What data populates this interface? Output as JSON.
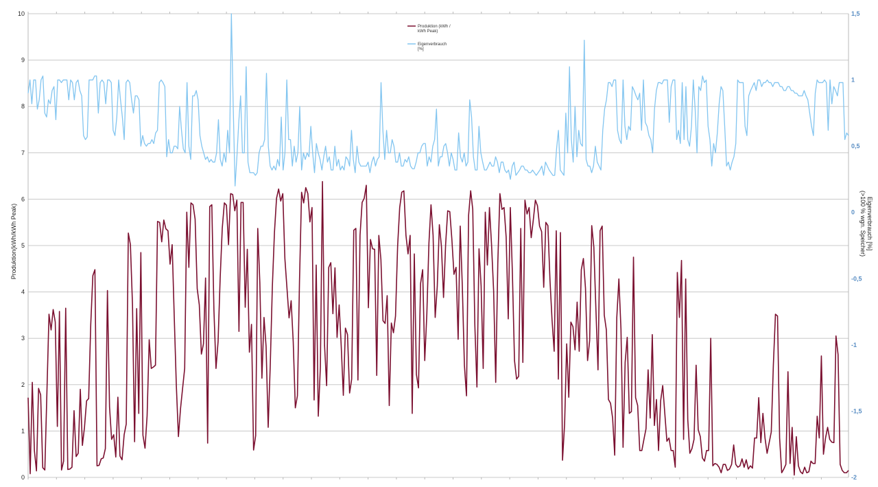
{
  "chart_data": {
    "type": "line",
    "xlabel": "",
    "ylabel": "Produktion(kWh/kWh Peak)",
    "ylabel_right": [
      "Eigenverbrauch [%]",
      "(>100 % wgn. Speicher)"
    ],
    "ylim": [
      0,
      10
    ],
    "ylim_right": [
      -2,
      1.5
    ],
    "left_ticks": [
      "0",
      "1",
      "2",
      "3",
      "4",
      "5",
      "6",
      "7",
      "8",
      "9",
      "10"
    ],
    "right_ticks": [
      "-2",
      "-1,5",
      "-1",
      "-0,5",
      "0",
      "0,5",
      "1",
      "1,5"
    ],
    "grid": true,
    "legend_position": "top-center",
    "series": [
      {
        "name": "Produktion (kWh / kWh Peak)",
        "legend_lines": [
          "Produktion (kWh /",
          "kWh Peak)"
        ],
        "axis": "left",
        "color": "#7b1030",
        "values": [
          1.72,
          0.08,
          2.05,
          0.58,
          0.14,
          1.92,
          1.78,
          0.21,
          0.16,
          1.83,
          3.52,
          3.18,
          3.62,
          3.35,
          1.1,
          3.58,
          0.16,
          0.35,
          3.65,
          0.17,
          0.18,
          0.22,
          1.44,
          0.45,
          0.52,
          1.9,
          0.69,
          1.08,
          1.65,
          1.7,
          3.3,
          4.35,
          4.48,
          0.25,
          0.26,
          0.4,
          0.42,
          0.62,
          4.03,
          1.52,
          0.82,
          0.92,
          0.44,
          1.73,
          0.46,
          0.38,
          0.92,
          1.15,
          5.27,
          5.02,
          3.72,
          0.77,
          3.64,
          1.38,
          4.85,
          0.91,
          0.63,
          1.33,
          2.97,
          2.35,
          2.38,
          2.42,
          5.52,
          5.5,
          5.08,
          5.55,
          5.36,
          5.32,
          4.6,
          5.02,
          3.46,
          1.98,
          0.88,
          1.48,
          1.92,
          2.35,
          5.72,
          4.53,
          5.92,
          5.88,
          5.57,
          4.07,
          3.72,
          2.66,
          2.88,
          4.3,
          0.74,
          5.84,
          5.88,
          3.62,
          2.35,
          2.93,
          4.3,
          5.37,
          5.92,
          5.87,
          5.02,
          6.12,
          6.1,
          5.75,
          5.98,
          3.15,
          5.93,
          5.93,
          3.67,
          4.92,
          2.7,
          3.3,
          0.59,
          0.9,
          5.37,
          4.2,
          2.14,
          3.45,
          2.82,
          1.08,
          2.43,
          4.12,
          5.28,
          6.02,
          6.22,
          5.96,
          6.12,
          4.72,
          4.08,
          3.44,
          3.81,
          2.92,
          1.5,
          1.76,
          4.23,
          6.15,
          5.92,
          6.25,
          6.12,
          5.51,
          5.82,
          1.67,
          4.58,
          1.32,
          2.38,
          6.38,
          2.85,
          1.98,
          4.53,
          4.63,
          3.53,
          4.52,
          3.02,
          3.72,
          2.82,
          1.77,
          3.22,
          3.08,
          1.82,
          2.12,
          5.33,
          5.37,
          2.1,
          5.22,
          5.93,
          6.02,
          6.3,
          3.66,
          5.13,
          4.93,
          4.92,
          2.2,
          5.22,
          4.7,
          3.38,
          3.32,
          3.92,
          1.55,
          3.33,
          3.12,
          3.48,
          4.98,
          5.82,
          6.15,
          6.18,
          5.22,
          4.82,
          5.22,
          1.38,
          4.82,
          2.22,
          1.93,
          4.18,
          4.48,
          2.52,
          3.52,
          5.05,
          5.88,
          5.22,
          3.45,
          4.12,
          5.45,
          4.98,
          3.88,
          5.02,
          5.75,
          5.73,
          5.13,
          4.38,
          4.53,
          2.98,
          5.42,
          4.12,
          2.42,
          1.76,
          5.65,
          6.18,
          5.78,
          3.28,
          1.95,
          4.93,
          4.13,
          2.35,
          5.72,
          4.58,
          5.82,
          5.02,
          4.02,
          2.05,
          4.62,
          6.12,
          5.78,
          5.82,
          5.18,
          3.42,
          5.82,
          4.38,
          2.52,
          2.12,
          2.18,
          5.37,
          2.48,
          5.98,
          5.68,
          5.82,
          5.17,
          5.55,
          5.98,
          5.86,
          5.42,
          5.3,
          4.1,
          5.5,
          5.43,
          4.25,
          3.38,
          2.72,
          5.32,
          2.12,
          5.28,
          0.37,
          1.15,
          2.88,
          1.73,
          3.35,
          3.25,
          2.75,
          3.78,
          2.72,
          4.48,
          4.72,
          4.08,
          2.52,
          2.95,
          5.43,
          4.97,
          3.62,
          2.32,
          5.32,
          5.42,
          3.5,
          3.18,
          1.68,
          1.6,
          1.28,
          0.48,
          3.45,
          4.28,
          3.2,
          0.65,
          2.48,
          3.02,
          1.38,
          1.42,
          4.75,
          1.72,
          1.55,
          0.58,
          0.58,
          0.82,
          1.05,
          2.32,
          1.28,
          3.08,
          1.12,
          1.68,
          0.58,
          1.65,
          1.98,
          1.38,
          0.78,
          0.85,
          0.58,
          0.58,
          0.22,
          4.42,
          3.45,
          4.68,
          0.82,
          4.28,
          1.25,
          0.52,
          0.62,
          0.82,
          2.42,
          1.03,
          0.88,
          0.42,
          0.35,
          0.58,
          0.58,
          3.0,
          0.25,
          0.3,
          0.28,
          0.22,
          0.1,
          0.28,
          0.28,
          0.15,
          0.18,
          0.28,
          0.7,
          0.28,
          0.22,
          0.25,
          0.4,
          0.22,
          0.38,
          0.18,
          0.25,
          0.2,
          0.85,
          0.85,
          1.72,
          0.75,
          1.38,
          0.85,
          0.52,
          0.75,
          0.98,
          2.42,
          3.52,
          3.48,
          0.85,
          0.1,
          0.18,
          0.28,
          2.28,
          0.3,
          1.08,
          0.05,
          0.88,
          0.25,
          0.12,
          0.08,
          0.22,
          0.1,
          0.12,
          0.35,
          0.3,
          0.3,
          1.32,
          0.85,
          2.62,
          0.5,
          0.85,
          1.08,
          0.82,
          0.76,
          0.75,
          3.05,
          2.65,
          0.28,
          0.15,
          0.1,
          0.1,
          0.15
        ]
      },
      {
        "name": "Eigenverbrauch [%]",
        "legend_lines": [
          "Eigenverbrauch",
          "[%]"
        ],
        "axis": "right",
        "color": "#82c5f0",
        "values": [
          0.9,
          1.0,
          0.82,
          1.0,
          1.0,
          0.78,
          0.85,
          1.0,
          1.03,
          0.75,
          0.72,
          0.85,
          0.82,
          0.92,
          0.95,
          0.7,
          1.0,
          1.0,
          0.98,
          1.0,
          1.0,
          1.0,
          0.85,
          1.0,
          0.98,
          0.85,
          0.98,
          1.0,
          0.92,
          0.88,
          0.58,
          0.55,
          0.57,
          1.0,
          1.0,
          1.0,
          1.03,
          1.03,
          0.75,
          0.98,
          1.0,
          0.98,
          0.82,
          1.0,
          1.0,
          0.98,
          0.62,
          0.58,
          0.72,
          1.0,
          0.85,
          0.72,
          0.55,
          0.98,
          1.0,
          0.98,
          0.85,
          0.75,
          0.88,
          0.88,
          0.85,
          0.5,
          0.58,
          0.52,
          0.5,
          0.52,
          0.52,
          0.55,
          0.52,
          0.6,
          0.62,
          0.98,
          1.0,
          0.98,
          0.95,
          0.42,
          0.55,
          0.45,
          0.45,
          0.5,
          0.5,
          0.48,
          0.8,
          0.62,
          0.48,
          0.45,
          0.98,
          0.5,
          0.4,
          0.88,
          0.88,
          0.92,
          0.85,
          0.58,
          0.5,
          0.45,
          0.4,
          0.42,
          0.38,
          0.4,
          0.38,
          0.38,
          0.45,
          0.7,
          0.4,
          0.35,
          0.45,
          0.38,
          0.62,
          0.45,
          1.5,
          0.8,
          0.2,
          0.42,
          0.68,
          0.88,
          0.45,
          0.45,
          1.1,
          0.38,
          0.3,
          0.3,
          0.3,
          0.28,
          0.3,
          0.45,
          0.5,
          0.5,
          0.55,
          1.05,
          0.5,
          0.35,
          0.32,
          0.35,
          0.32,
          0.4,
          0.35,
          0.72,
          0.32,
          0.45,
          1.0,
          0.55,
          0.55,
          0.35,
          0.5,
          0.38,
          0.45,
          0.8,
          0.32,
          0.45,
          0.4,
          0.45,
          0.42,
          0.65,
          0.45,
          0.3,
          0.52,
          0.45,
          0.4,
          0.32,
          0.42,
          0.5,
          0.38,
          0.42,
          0.32,
          0.32,
          0.5,
          0.35,
          0.4,
          0.32,
          0.35,
          0.32,
          0.42,
          0.4,
          0.35,
          0.62,
          0.4,
          0.3,
          0.5,
          0.38,
          0.35,
          0.35,
          0.35,
          0.35,
          0.38,
          0.3,
          0.38,
          0.42,
          0.35,
          0.4,
          0.42,
          0.98,
          0.62,
          0.4,
          0.62,
          0.45,
          0.45,
          0.55,
          0.5,
          0.38,
          0.38,
          0.45,
          0.35,
          0.35,
          0.4,
          0.38,
          0.42,
          0.35,
          0.33,
          0.33,
          0.38,
          0.45,
          0.45,
          0.5,
          0.52,
          0.52,
          0.35,
          0.42,
          0.38,
          0.5,
          0.55,
          0.78,
          0.35,
          0.42,
          0.42,
          0.5,
          0.52,
          0.45,
          0.35,
          0.45,
          0.4,
          0.32,
          0.32,
          0.6,
          0.42,
          0.38,
          0.45,
          0.35,
          0.38,
          0.85,
          0.72,
          0.42,
          0.32,
          0.32,
          0.65,
          0.45,
          0.38,
          0.32,
          0.32,
          0.35,
          0.38,
          0.35,
          0.35,
          0.42,
          0.38,
          0.3,
          0.38,
          0.38,
          0.32,
          0.3,
          0.32,
          0.25,
          0.35,
          0.38,
          0.28,
          0.3,
          0.32,
          0.35,
          0.35,
          0.32,
          0.32,
          0.3,
          0.3,
          0.32,
          0.3,
          0.28,
          0.3,
          0.32,
          0.35,
          0.28,
          0.38,
          0.35,
          0.32,
          0.3,
          0.28,
          0.28,
          0.48,
          0.62,
          0.32,
          0.3,
          0.28,
          0.75,
          0.45,
          1.1,
          0.55,
          0.38,
          0.8,
          0.42,
          0.62,
          0.52,
          0.5,
          1.3,
          0.4,
          0.35,
          0.35,
          0.3,
          0.35,
          0.5,
          0.38,
          0.35,
          0.32,
          0.62,
          0.78,
          0.85,
          0.98,
          0.98,
          0.95,
          1.0,
          1.0,
          0.62,
          0.55,
          0.52,
          1.0,
          0.65,
          0.55,
          0.65,
          0.62,
          0.95,
          0.92,
          0.88,
          0.85,
          0.9,
          0.62,
          1.0,
          0.68,
          0.65,
          0.58,
          0.55,
          0.45,
          0.78,
          0.92,
          0.98,
          0.98,
          0.97,
          1.0,
          1.0,
          1.0,
          0.68,
          0.95,
          1.0,
          1.0,
          0.55,
          0.62,
          0.52,
          0.98,
          0.55,
          0.95,
          0.55,
          0.5,
          0.65,
          1.0,
          0.78,
          0.45,
          0.95,
          0.92,
          1.03,
          0.98,
          1.0,
          0.65,
          0.55,
          0.35,
          0.52,
          0.45,
          0.6,
          0.82,
          0.95,
          0.92,
          0.65,
          0.35,
          0.38,
          0.32,
          0.38,
          0.42,
          0.52,
          1.0,
          0.98,
          0.98,
          0.98,
          0.65,
          0.58,
          0.88,
          0.92,
          0.95,
          0.98,
          0.92,
          1.0,
          1.0,
          0.95,
          0.98,
          0.98,
          1.0,
          0.98,
          0.98,
          0.95,
          0.98,
          0.98,
          0.98,
          0.95,
          0.95,
          0.92,
          0.92,
          0.95,
          0.95,
          0.92,
          0.92,
          0.9,
          0.9,
          0.88,
          0.88,
          0.88,
          0.92,
          0.88,
          0.85,
          0.75,
          0.65,
          0.58,
          0.9,
          1.0,
          0.98,
          0.98,
          0.98,
          1.0,
          0.98,
          0.62,
          1.0,
          0.82,
          0.95,
          0.92,
          0.88,
          0.98,
          0.98,
          0.98,
          0.55,
          0.6,
          0.58
        ]
      }
    ]
  }
}
